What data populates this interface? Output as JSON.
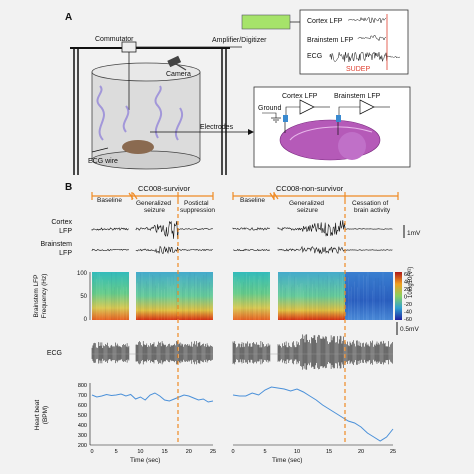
{
  "panel_a": {
    "label": "A",
    "commutator": "Commutator",
    "amplifier": "Amplifier/Digitizer",
    "camera": "Camera",
    "electrodes": "Electrodes",
    "ecg_wire": "ECG wire",
    "inset_traces": [
      "Cortex LFP",
      "Brainstem LFP",
      "ECG"
    ],
    "sudep": "SUDEP",
    "ground": "Ground",
    "cortex_lfp": "Cortex LFP",
    "brainstem_lfp": "Brainstem LFP"
  },
  "panel_b": {
    "label": "B",
    "left": {
      "title": "CC008-survivor",
      "phases": [
        "Baseline",
        "Generalized\nseizure",
        "Postictal\nsuppression"
      ]
    },
    "right": {
      "title": "CC008-non-survivor",
      "phases": [
        "Baseline",
        "Generalized\nseizure",
        "Cessation of\nbrain activity"
      ]
    },
    "row_labels": {
      "cortex": "Cortex\nLFP",
      "brainstem": "Brainstem\nLFP",
      "spectrogram": "Brainstem LFP\nFrequency (Hz)",
      "ecg": "ECG",
      "hr": "Heart beat\n(BPM)"
    },
    "scale_1mv": "1mV",
    "scale_05mv": "0.5mV",
    "colorbar_label": "10log10(V²)",
    "colorbar_ticks": [
      "60",
      "40",
      "20",
      "0",
      "-20",
      "-40",
      "-60"
    ],
    "spec_ticks": [
      "100",
      "50",
      "0"
    ],
    "hr_ticks": [
      "800",
      "700",
      "600",
      "500",
      "400",
      "300",
      "200"
    ],
    "x_ticks_left": [
      "0",
      "5",
      "10",
      "15",
      "20",
      "25"
    ],
    "x_ticks_right": [
      "0",
      "5",
      "10",
      "15",
      "20",
      "25"
    ],
    "x_label": "Time (sec)"
  },
  "chart_data": [
    {
      "type": "line",
      "title": "CC008-survivor heart beat",
      "xlabel": "Time (sec)",
      "ylabel": "Heart beat (BPM)",
      "ylim": [
        200,
        800
      ],
      "xlim": [
        0,
        25
      ],
      "x": [
        0,
        1,
        2,
        3,
        4,
        5,
        6,
        7,
        8,
        9,
        10,
        11,
        12,
        13,
        14,
        15,
        16,
        17,
        18,
        19,
        20,
        21,
        22,
        23,
        24,
        25
      ],
      "series": [
        {
          "values": [
            700,
            680,
            690,
            705,
            695,
            700,
            710,
            690,
            705,
            660,
            680,
            650,
            700,
            720,
            690,
            650,
            640,
            660,
            680,
            700,
            690,
            670,
            650,
            660,
            630,
            640
          ]
        }
      ]
    },
    {
      "type": "line",
      "title": "CC008-non-survivor heart beat",
      "xlabel": "Time (sec)",
      "ylabel": "Heart beat (BPM)",
      "ylim": [
        200,
        800
      ],
      "xlim": [
        0,
        25
      ],
      "x": [
        0,
        1,
        2,
        3,
        4,
        5,
        6,
        7,
        8,
        9,
        10,
        11,
        12,
        13,
        14,
        15,
        16,
        17,
        18,
        19,
        20,
        21,
        22,
        23,
        24,
        25
      ],
      "series": [
        {
          "values": [
            700,
            690,
            690,
            720,
            700,
            750,
            780,
            770,
            760,
            740,
            760,
            730,
            690,
            650,
            600,
            560,
            520,
            480,
            440,
            420,
            380,
            320,
            280,
            240,
            280,
            360
          ]
        }
      ]
    }
  ],
  "colors": {
    "orange": "#f08a24",
    "red": "#e04030",
    "hr_line": "#4a90d9",
    "amplifier": "#a6e36a"
  }
}
